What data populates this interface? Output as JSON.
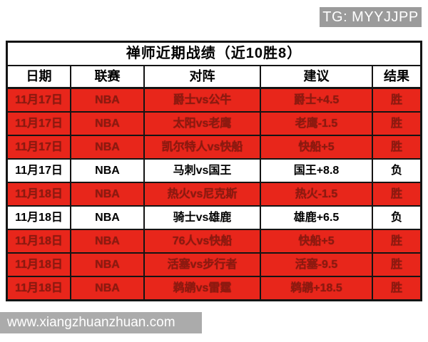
{
  "watermark_top": {
    "text": "TG: MYYJJPP",
    "bg_color": "#9b9b9b",
    "text_color": "#ffffff"
  },
  "watermark_bottom": {
    "text": "www.xiangzhuanzhuan.com",
    "bg_color": "#ababab",
    "text_color": "#ffffff"
  },
  "table": {
    "title": "禅师近期战绩（近10胜8）",
    "headers": [
      "日期",
      "联赛",
      "对阵",
      "建议",
      "结果"
    ],
    "colors": {
      "highlight_row_bg": "#e8261b",
      "highlight_row_text": "#8b1a10",
      "normal_row_bg": "#ffffff",
      "normal_row_text": "#000000",
      "border": "#141414"
    },
    "rows": [
      {
        "date": "11月17日",
        "league": "NBA",
        "matchup": "爵士vs公牛",
        "advice": "爵士+4.5",
        "result": "胜",
        "highlight": true
      },
      {
        "date": "11月17日",
        "league": "NBA",
        "matchup": "太阳vs老鹰",
        "advice": "老鹰-1.5",
        "result": "胜",
        "highlight": true
      },
      {
        "date": "11月17日",
        "league": "NBA",
        "matchup": "凯尔特人vs快船",
        "advice": "快船+5",
        "result": "胜",
        "highlight": true
      },
      {
        "date": "11月17日",
        "league": "NBA",
        "matchup": "马刺vs国王",
        "advice": "国王+8.8",
        "result": "负",
        "highlight": false
      },
      {
        "date": "11月18日",
        "league": "NBA",
        "matchup": "热火vs尼克斯",
        "advice": "热火-1.5",
        "result": "胜",
        "highlight": true
      },
      {
        "date": "11月18日",
        "league": "NBA",
        "matchup": "骑士vs雄鹿",
        "advice": "雄鹿+6.5",
        "result": "负",
        "highlight": false
      },
      {
        "date": "11月18日",
        "league": "NBA",
        "matchup": "76人vs快船",
        "advice": "快船+5",
        "result": "胜",
        "highlight": true
      },
      {
        "date": "11月18日",
        "league": "NBA",
        "matchup": "活塞vs步行者",
        "advice": "活塞-9.5",
        "result": "胜",
        "highlight": true
      },
      {
        "date": "11月18日",
        "league": "NBA",
        "matchup": "鹈鹕vs雷霆",
        "advice": "鹈鹕+18.5",
        "result": "胜",
        "highlight": true
      }
    ]
  },
  "chart_data": {
    "type": "table",
    "title": "禅师近期战绩（近10胜8）",
    "columns": [
      "日期",
      "联赛",
      "对阵",
      "建议",
      "结果"
    ],
    "rows": [
      [
        "11月17日",
        "NBA",
        "爵士vs公牛",
        "爵士+4.5",
        "胜"
      ],
      [
        "11月17日",
        "NBA",
        "太阳vs老鹰",
        "老鹰-1.5",
        "胜"
      ],
      [
        "11月17日",
        "NBA",
        "凯尔特人vs快船",
        "快船+5",
        "胜"
      ],
      [
        "11月17日",
        "NBA",
        "马刺vs国王",
        "国王+8.8",
        "负"
      ],
      [
        "11月18日",
        "NBA",
        "热火vs尼克斯",
        "热火-1.5",
        "胜"
      ],
      [
        "11月18日",
        "NBA",
        "骑士vs雄鹿",
        "雄鹿+6.5",
        "负"
      ],
      [
        "11月18日",
        "NBA",
        "76人vs快船",
        "快船+5",
        "胜"
      ],
      [
        "11月18日",
        "NBA",
        "活塞vs步行者",
        "活塞-9.5",
        "胜"
      ],
      [
        "11月18日",
        "NBA",
        "鹈鹕vs雷霆",
        "鹈鹕+18.5",
        "胜"
      ]
    ],
    "notes": "红底行=胜(win, highlighted red), 白底行=负(loss); 9 of 10 recent games visible"
  }
}
